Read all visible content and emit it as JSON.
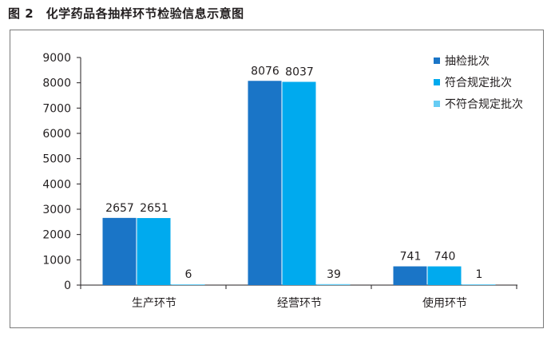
{
  "figure_title": "图 2　化学药品各抽样环节检验信息示意图",
  "colors": {
    "series_1": "#1a75c7",
    "series_2": "#00aaee",
    "series_3": "#66ccf4",
    "axis": "#231f20",
    "frame": "#7a7a7a"
  },
  "chart_data": {
    "type": "bar",
    "title": "",
    "xlabel": "",
    "ylabel": "",
    "categories": [
      "生产环节",
      "经营环节",
      "使用环节"
    ],
    "series": [
      {
        "name": "抽检批次",
        "values": [
          2657,
          8076,
          741
        ]
      },
      {
        "name": "符合规定批次",
        "values": [
          2651,
          8037,
          740
        ]
      },
      {
        "name": "不符合规定批次",
        "values": [
          6,
          39,
          1
        ]
      }
    ],
    "ylim": [
      0,
      9000
    ],
    "yticks": [
      0,
      1000,
      2000,
      3000,
      4000,
      5000,
      6000,
      7000,
      8000,
      9000
    ],
    "grid": false,
    "legend_position": "top-right",
    "data_labels": true
  }
}
